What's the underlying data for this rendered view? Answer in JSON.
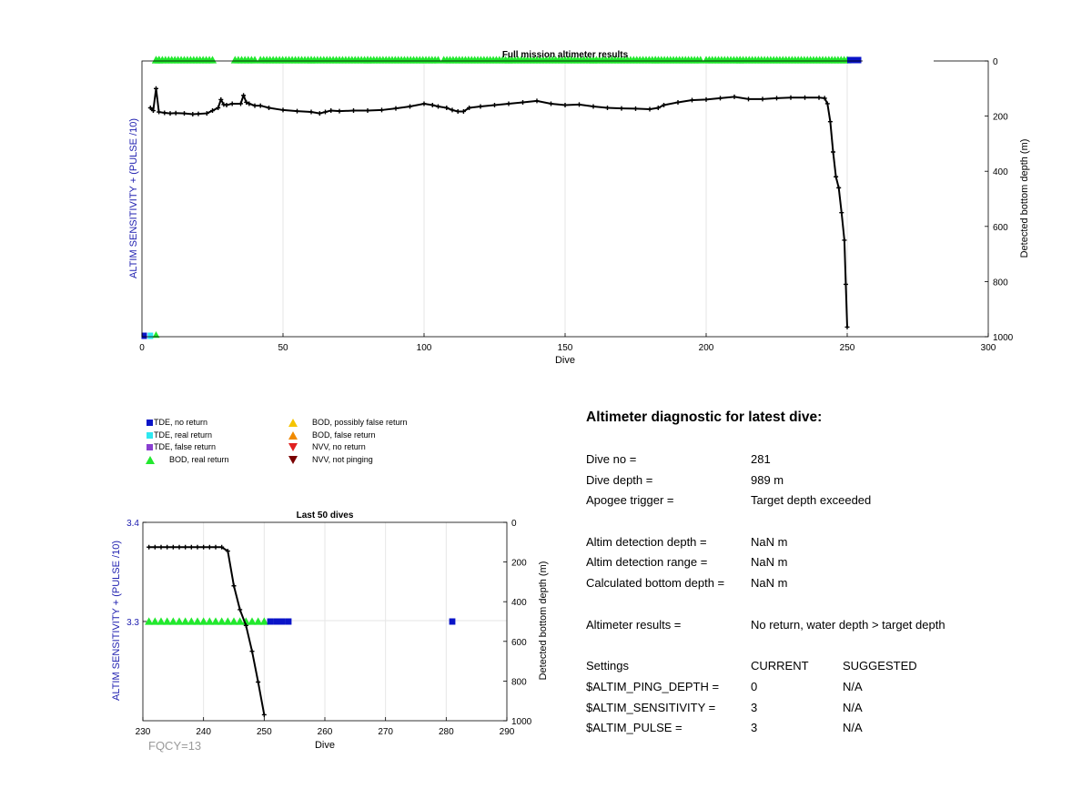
{
  "colors": {
    "tde_no_return": "#0a14c8",
    "tde_real_return": "#2ee8f0",
    "tde_false_return": "#8a3fd0",
    "bod_real_return": "#22e82e",
    "bod_possibly_false": "#f5c400",
    "bod_false_return": "#f08a00",
    "nvv_no_return": "#e02020",
    "nvv_not_pinging": "#7a0000",
    "depth_line": "#000000",
    "left_axis_label": "#2020b0",
    "grid": "#e6e6e6",
    "fqcy": "#9a9a9a"
  },
  "legend": {
    "items": [
      {
        "label": "TDE, no return",
        "marker": "square",
        "color_key": "tde_no_return"
      },
      {
        "label": "TDE, real return",
        "marker": "square",
        "color_key": "tde_real_return"
      },
      {
        "label": "TDE, false return",
        "marker": "square",
        "color_key": "tde_false_return"
      },
      {
        "label": "BOD, real return",
        "marker": "triangle-up",
        "color_key": "bod_real_return"
      },
      {
        "label": "BOD, possibly false return",
        "marker": "triangle-up",
        "color_key": "bod_possibly_false"
      },
      {
        "label": "BOD, false return",
        "marker": "triangle-up",
        "color_key": "bod_false_return"
      },
      {
        "label": "NVV, no return",
        "marker": "triangle-down",
        "color_key": "nvv_no_return"
      },
      {
        "label": "NVV, not pinging",
        "marker": "triangle-down",
        "color_key": "nvv_not_pinging"
      }
    ]
  },
  "chart_data": [
    {
      "type": "line",
      "title": "Full mission altimeter results",
      "xlabel": "Dive",
      "ylabel_left": "ALTIM SENSITIVITY + (PULSE /10)",
      "ylabel_right": "Detected bottom depth (m)",
      "xlim": [
        0,
        300
      ],
      "xticks": [
        0,
        50,
        100,
        150,
        200,
        250,
        300
      ],
      "right_ylim": [
        0,
        1000
      ],
      "right_yticks": [
        0,
        200,
        400,
        600,
        800,
        1000
      ],
      "right_reversed": true,
      "grid": true,
      "depth_series": [
        [
          3,
          170
        ],
        [
          4,
          180
        ],
        [
          5,
          100
        ],
        [
          6,
          185
        ],
        [
          8,
          188
        ],
        [
          10,
          190
        ],
        [
          12,
          189
        ],
        [
          15,
          190
        ],
        [
          18,
          193
        ],
        [
          20,
          192
        ],
        [
          23,
          190
        ],
        [
          25,
          180
        ],
        [
          27,
          170
        ],
        [
          28,
          140
        ],
        [
          29,
          158
        ],
        [
          30,
          160
        ],
        [
          32,
          155
        ],
        [
          35,
          155
        ],
        [
          36,
          125
        ],
        [
          37,
          150
        ],
        [
          38,
          155
        ],
        [
          40,
          162
        ],
        [
          42,
          162
        ],
        [
          45,
          170
        ],
        [
          50,
          178
        ],
        [
          55,
          182
        ],
        [
          60,
          185
        ],
        [
          63,
          190
        ],
        [
          65,
          185
        ],
        [
          67,
          180
        ],
        [
          70,
          182
        ],
        [
          75,
          180
        ],
        [
          80,
          180
        ],
        [
          85,
          178
        ],
        [
          90,
          172
        ],
        [
          95,
          165
        ],
        [
          100,
          155
        ],
        [
          103,
          160
        ],
        [
          105,
          165
        ],
        [
          108,
          170
        ],
        [
          110,
          178
        ],
        [
          112,
          183
        ],
        [
          114,
          183
        ],
        [
          116,
          170
        ],
        [
          120,
          165
        ],
        [
          125,
          160
        ],
        [
          130,
          155
        ],
        [
          135,
          150
        ],
        [
          140,
          145
        ],
        [
          145,
          155
        ],
        [
          150,
          160
        ],
        [
          155,
          158
        ],
        [
          160,
          165
        ],
        [
          165,
          170
        ],
        [
          170,
          172
        ],
        [
          175,
          173
        ],
        [
          180,
          175
        ],
        [
          183,
          170
        ],
        [
          185,
          160
        ],
        [
          190,
          150
        ],
        [
          195,
          142
        ],
        [
          200,
          140
        ],
        [
          205,
          135
        ],
        [
          210,
          130
        ],
        [
          215,
          138
        ],
        [
          220,
          138
        ],
        [
          225,
          135
        ],
        [
          230,
          133
        ],
        [
          235,
          133
        ],
        [
          240,
          133
        ],
        [
          242,
          135
        ],
        [
          243,
          155
        ],
        [
          244,
          220
        ],
        [
          245,
          330
        ],
        [
          246,
          420
        ],
        [
          247,
          460
        ],
        [
          248,
          550
        ],
        [
          249,
          650
        ],
        [
          249.5,
          810
        ],
        [
          250,
          965
        ]
      ],
      "bod_real_return_top": [
        [
          5,
          6
        ],
        [
          5,
          25
        ],
        [
          33,
          40
        ],
        [
          42,
          60
        ],
        [
          60,
          80
        ],
        [
          80,
          105
        ],
        [
          107,
          130
        ],
        [
          130,
          160
        ],
        [
          160,
          182
        ],
        [
          182,
          198
        ],
        [
          200,
          212
        ],
        [
          212,
          250
        ]
      ],
      "tde_no_return_top": [
        [
          250,
          255
        ]
      ],
      "bottom_markers": [
        {
          "x": 0.8,
          "kind": "tde_no_return"
        },
        {
          "x": 3,
          "kind": "tde_real_return"
        },
        {
          "x": 5,
          "kind": "bod_real_return"
        }
      ]
    },
    {
      "type": "line",
      "title": "Last 50 dives",
      "xlabel": "Dive",
      "ylabel_left": "ALTIM SENSITIVITY + (PULSE /10)",
      "ylabel_right": "Detected bottom depth (m)",
      "xlim": [
        230,
        290
      ],
      "xticks": [
        230,
        240,
        250,
        260,
        270,
        280,
        290
      ],
      "left_ylim": [
        3.2,
        3.4
      ],
      "left_yticks": [
        3.3,
        3.4
      ],
      "right_ylim": [
        0,
        1000
      ],
      "right_yticks": [
        0,
        200,
        400,
        600,
        800,
        1000
      ],
      "right_reversed": true,
      "grid": true,
      "depth_series": [
        [
          231,
          125
        ],
        [
          232,
          125
        ],
        [
          233,
          125
        ],
        [
          234,
          125
        ],
        [
          235,
          125
        ],
        [
          236,
          125
        ],
        [
          237,
          125
        ],
        [
          238,
          125
        ],
        [
          239,
          125
        ],
        [
          240,
          125
        ],
        [
          241,
          125
        ],
        [
          242,
          125
        ],
        [
          243,
          125
        ],
        [
          244,
          145
        ],
        [
          245,
          320
        ],
        [
          246,
          440
        ],
        [
          247,
          520
        ],
        [
          248,
          650
        ],
        [
          249,
          805
        ],
        [
          250,
          970
        ]
      ],
      "sensitivity_bod_real_return": [
        [
          231,
          3.3
        ],
        [
          232,
          3.3
        ],
        [
          233,
          3.3
        ],
        [
          234,
          3.3
        ],
        [
          235,
          3.3
        ],
        [
          236,
          3.3
        ],
        [
          237,
          3.3
        ],
        [
          238,
          3.3
        ],
        [
          239,
          3.3
        ],
        [
          240,
          3.3
        ],
        [
          241,
          3.3
        ],
        [
          242,
          3.3
        ],
        [
          243,
          3.3
        ],
        [
          244,
          3.3
        ],
        [
          245,
          3.3
        ],
        [
          246,
          3.3
        ],
        [
          247,
          3.3
        ],
        [
          248,
          3.3
        ],
        [
          249,
          3.3
        ],
        [
          250,
          3.3
        ]
      ],
      "sensitivity_tde_no_return": [
        [
          251,
          3.3
        ],
        [
          252,
          3.3
        ],
        [
          253,
          3.3
        ],
        [
          254,
          3.3
        ],
        [
          281,
          3.3
        ]
      ]
    }
  ],
  "fqcy": "FQCY=13",
  "diagnostic": {
    "title": "Altimeter diagnostic for latest dive:",
    "rows": [
      {
        "label": "Dive no =",
        "value": "281",
        "value2": ""
      },
      {
        "label": "Dive depth =",
        "value": "989 m",
        "value2": ""
      },
      {
        "label": "Apogee trigger =",
        "value": "Target depth exceeded",
        "value2": ""
      },
      {
        "label": "Altim detection depth =",
        "value": "NaN m",
        "value2": ""
      },
      {
        "label": "Altim detection range =",
        "value": "NaN m",
        "value2": ""
      },
      {
        "label": "Calculated bottom depth =",
        "value": "NaN m",
        "value2": ""
      },
      {
        "label": "Altimeter results =",
        "value": "No return, water depth > target depth",
        "value2": ""
      },
      {
        "label": "Settings",
        "value": "CURRENT",
        "value2": "SUGGESTED"
      },
      {
        "label": "$ALTIM_PING_DEPTH =",
        "value": "0",
        "value2": "N/A"
      },
      {
        "label": "$ALTIM_SENSITIVITY =",
        "value": "3",
        "value2": "N/A"
      },
      {
        "label": "$ALTIM_PULSE =",
        "value": "3",
        "value2": "N/A"
      }
    ]
  }
}
